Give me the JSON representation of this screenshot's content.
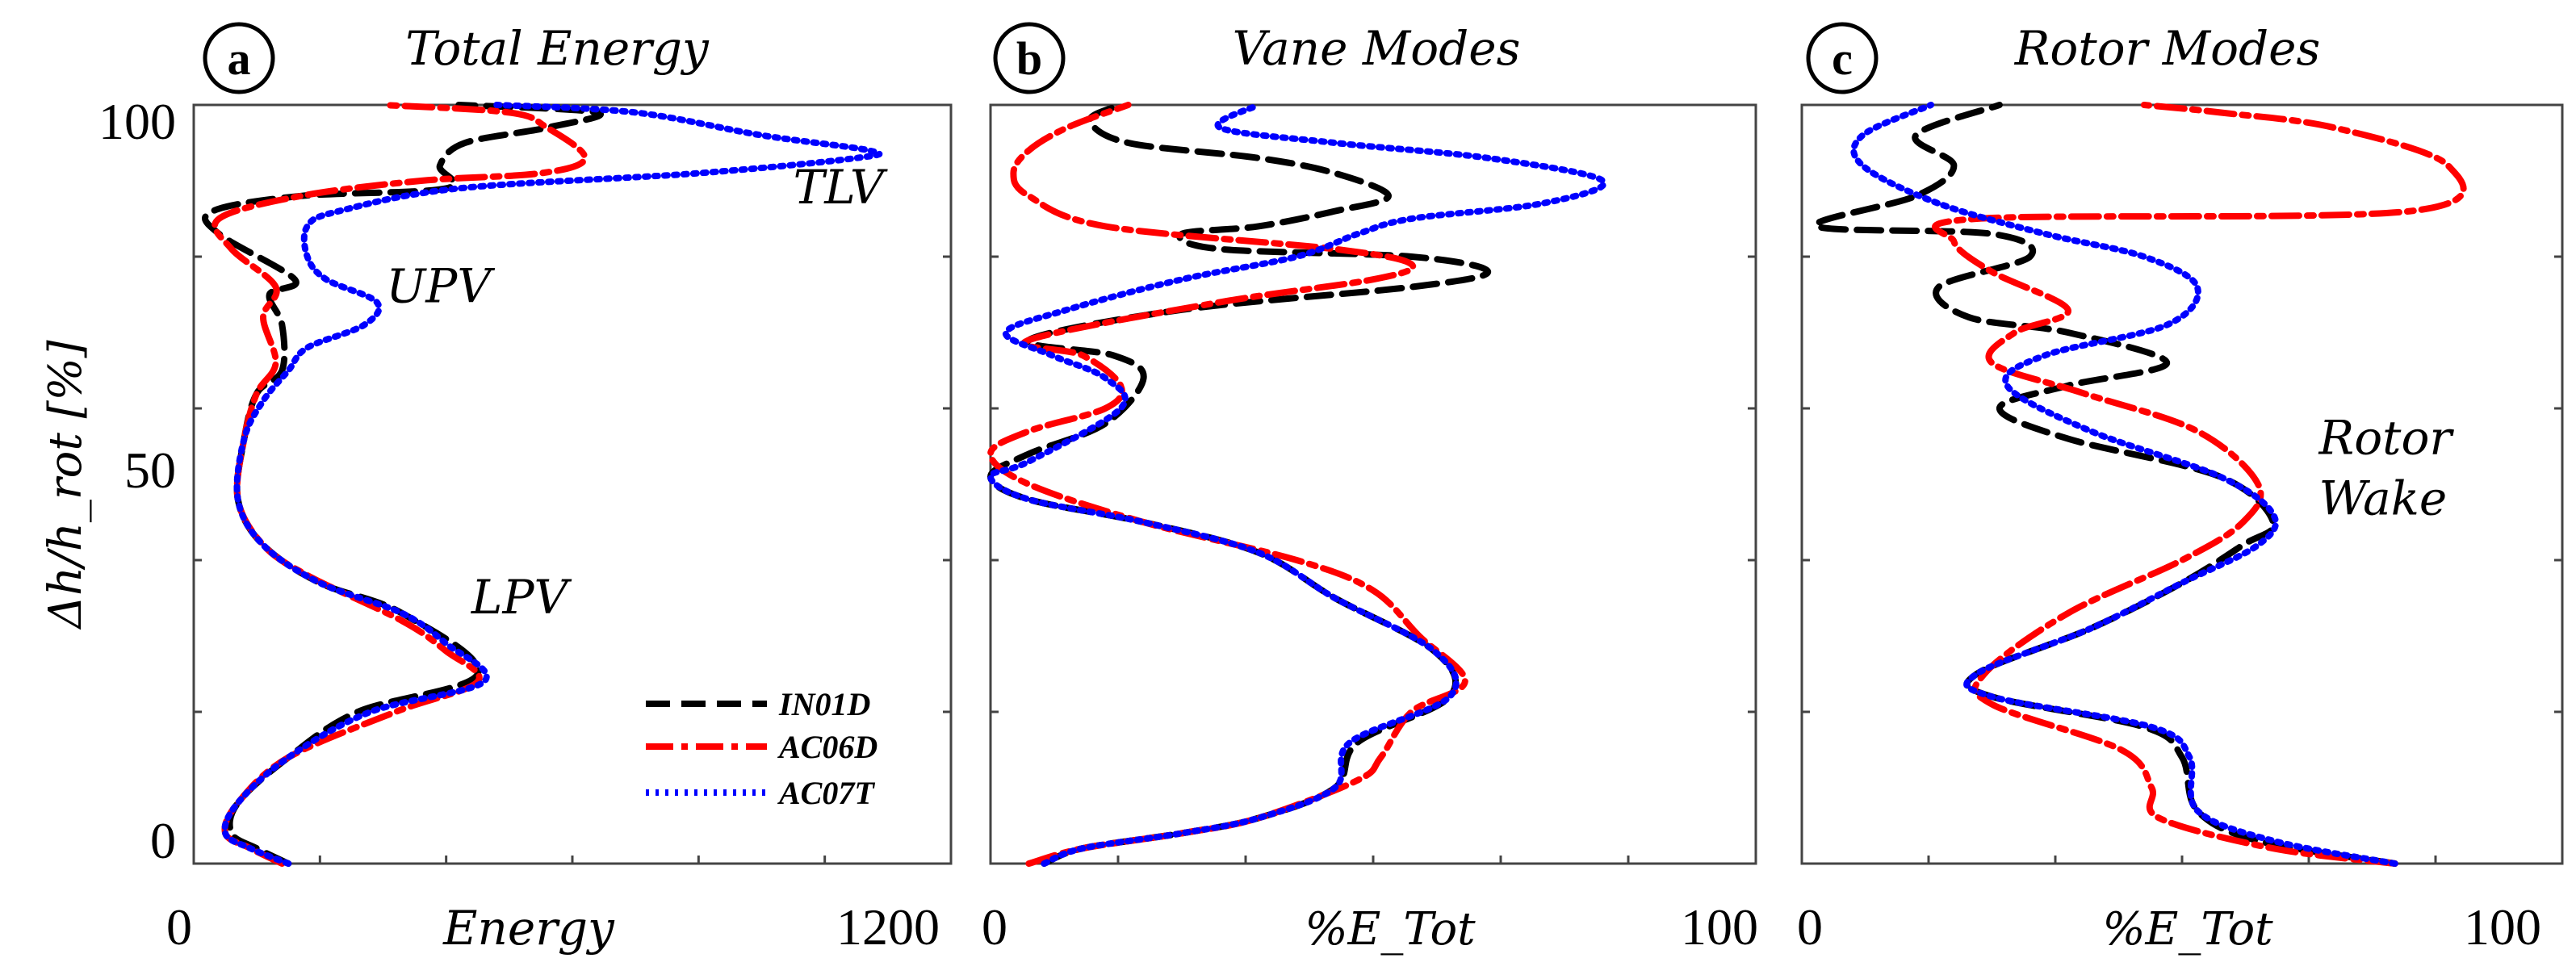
{
  "chart_data": [
    {
      "type": "line",
      "panel_label": "a",
      "title": "Total Energy",
      "xlabel": "Energy",
      "ylabel": "Δh/h_rot [%]",
      "xlim": [
        0,
        1200
      ],
      "ylim": [
        0,
        100
      ],
      "x_tick_labels": [
        "0",
        "1200"
      ],
      "y_tick_labels": [
        "0",
        "50",
        "100"
      ],
      "annotations": [
        {
          "text": "TLV",
          "x": 950,
          "y": 87
        },
        {
          "text": "UPV",
          "x": 305,
          "y": 74
        },
        {
          "text": "LPV",
          "x": 440,
          "y": 33
        }
      ],
      "legend": {
        "position": "lower-right",
        "entries": [
          {
            "label": "IN01D",
            "color": "#000000",
            "style": "dashed"
          },
          {
            "label": "AC06D",
            "color": "#ff0000",
            "style": "dashdot"
          },
          {
            "label": "AC07T",
            "color": "#0000ff",
            "style": "dotted"
          }
        ]
      },
      "series": [
        {
          "name": "IN01D",
          "color": "#000000",
          "style": "dashed",
          "points": [
            [
              150,
              0
            ],
            [
              100,
              2
            ],
            [
              60,
              4
            ],
            [
              70,
              8
            ],
            [
              150,
              14
            ],
            [
              260,
              20
            ],
            [
              450,
              25
            ],
            [
              330,
              33
            ],
            [
              200,
              37
            ],
            [
              110,
              42
            ],
            [
              70,
              48
            ],
            [
              80,
              56
            ],
            [
              100,
              62
            ],
            [
              140,
              65
            ],
            [
              140,
              71
            ],
            [
              120,
              75
            ],
            [
              160,
              77
            ],
            [
              40,
              83
            ],
            [
              30,
              86
            ],
            [
              170,
              88
            ],
            [
              400,
              89
            ],
            [
              390,
              92
            ],
            [
              430,
              95
            ],
            [
              560,
              97
            ],
            [
              640,
              99
            ],
            [
              420,
              100
            ]
          ]
        },
        {
          "name": "AC06D",
          "color": "#ff0000",
          "style": "dashdot",
          "points": [
            [
              140,
              0
            ],
            [
              90,
              2
            ],
            [
              50,
              4
            ],
            [
              70,
              8
            ],
            [
              150,
              14
            ],
            [
              320,
              20
            ],
            [
              450,
              24
            ],
            [
              400,
              28
            ],
            [
              330,
              32
            ],
            [
              180,
              38
            ],
            [
              110,
              42
            ],
            [
              70,
              48
            ],
            [
              80,
              56
            ],
            [
              100,
              62
            ],
            [
              130,
              66
            ],
            [
              110,
              72
            ],
            [
              130,
              76
            ],
            [
              60,
              81
            ],
            [
              40,
              85
            ],
            [
              170,
              88
            ],
            [
              360,
              90
            ],
            [
              550,
              91
            ],
            [
              620,
              93
            ],
            [
              560,
              97
            ],
            [
              500,
              99
            ],
            [
              300,
              100
            ]
          ]
        },
        {
          "name": "AC07T",
          "color": "#0000ff",
          "style": "dotted",
          "points": [
            [
              150,
              0
            ],
            [
              90,
              2
            ],
            [
              50,
              4
            ],
            [
              70,
              8
            ],
            [
              150,
              14
            ],
            [
              280,
              20
            ],
            [
              460,
              24
            ],
            [
              400,
              29
            ],
            [
              330,
              33
            ],
            [
              200,
              37
            ],
            [
              110,
              42
            ],
            [
              70,
              48
            ],
            [
              80,
              56
            ],
            [
              110,
              61
            ],
            [
              150,
              65
            ],
            [
              180,
              68
            ],
            [
              270,
              71
            ],
            [
              290,
              74
            ],
            [
              210,
              77
            ],
            [
              180,
              80
            ],
            [
              180,
              84
            ],
            [
              230,
              86
            ],
            [
              420,
              89
            ],
            [
              800,
              91
            ],
            [
              1050,
              93
            ],
            [
              1070,
              94
            ],
            [
              900,
              96
            ],
            [
              700,
              99
            ],
            [
              480,
              100
            ]
          ]
        }
      ]
    },
    {
      "type": "line",
      "panel_label": "b",
      "title": "Vane Modes",
      "xlabel": "%E_Tot",
      "ylabel": "",
      "xlim": [
        0,
        100
      ],
      "ylim": [
        0,
        100
      ],
      "x_tick_labels": [
        "0",
        "100"
      ],
      "y_tick_labels": [],
      "annotations": [],
      "series": [
        {
          "name": "IN01D",
          "color": "#000000",
          "style": "dashed",
          "points": [
            [
              7,
              0
            ],
            [
              12,
              2
            ],
            [
              25,
              4
            ],
            [
              35,
              6
            ],
            [
              45,
              10
            ],
            [
              48,
              16
            ],
            [
              60,
              22
            ],
            [
              58,
              28
            ],
            [
              45,
              35
            ],
            [
              35,
              41
            ],
            [
              20,
              45
            ],
            [
              5,
              48
            ],
            [
              0,
              51
            ],
            [
              5,
              54
            ],
            [
              15,
              58
            ],
            [
              20,
              64
            ],
            [
              16,
              67
            ],
            [
              5,
              69
            ],
            [
              25,
              73
            ],
            [
              55,
              76
            ],
            [
              65,
              78
            ],
            [
              55,
              80
            ],
            [
              30,
              81
            ],
            [
              25,
              83
            ],
            [
              35,
              84
            ],
            [
              45,
              86
            ],
            [
              52,
              88
            ],
            [
              45,
              91
            ],
            [
              35,
              93
            ],
            [
              18,
              95
            ],
            [
              13,
              98
            ],
            [
              17,
              100
            ]
          ]
        },
        {
          "name": "AC06D",
          "color": "#ff0000",
          "style": "dashdot",
          "points": [
            [
              5,
              0
            ],
            [
              12,
              2
            ],
            [
              25,
              4
            ],
            [
              35,
              6
            ],
            [
              48,
              11
            ],
            [
              51,
              14
            ],
            [
              55,
              20
            ],
            [
              62,
              24
            ],
            [
              56,
              30
            ],
            [
              50,
              36
            ],
            [
              40,
              40
            ],
            [
              20,
              45
            ],
            [
              5,
              50
            ],
            [
              0,
              54
            ],
            [
              5,
              57
            ],
            [
              15,
              60
            ],
            [
              17,
              63
            ],
            [
              12,
              67
            ],
            [
              5,
              69
            ],
            [
              30,
              74
            ],
            [
              50,
              77
            ],
            [
              55,
              79
            ],
            [
              45,
              81
            ],
            [
              15,
              84
            ],
            [
              5,
              88
            ],
            [
              3,
              91
            ],
            [
              5,
              94
            ],
            [
              10,
              97
            ],
            [
              18,
              100
            ]
          ]
        },
        {
          "name": "AC07T",
          "color": "#0000ff",
          "style": "dotted",
          "points": [
            [
              7,
              0
            ],
            [
              12,
              2
            ],
            [
              25,
              4
            ],
            [
              35,
              6
            ],
            [
              45,
              10
            ],
            [
              47,
              16
            ],
            [
              60,
              22
            ],
            [
              58,
              28
            ],
            [
              45,
              35
            ],
            [
              35,
              41
            ],
            [
              20,
              45
            ],
            [
              5,
              48
            ],
            [
              0,
              51
            ],
            [
              5,
              53
            ],
            [
              17,
              60
            ],
            [
              15,
              64
            ],
            [
              8,
              67
            ],
            [
              2,
              70
            ],
            [
              10,
              73
            ],
            [
              25,
              77
            ],
            [
              40,
              80
            ],
            [
              48,
              83
            ],
            [
              55,
              85
            ],
            [
              72,
              87
            ],
            [
              80,
              90
            ],
            [
              65,
              93
            ],
            [
              45,
              95
            ],
            [
              30,
              97
            ],
            [
              35,
              100
            ]
          ]
        }
      ]
    },
    {
      "type": "line",
      "panel_label": "c",
      "title": "Rotor Modes",
      "xlabel": "%E_Tot",
      "ylabel": "",
      "xlim": [
        0,
        100
      ],
      "ylim": [
        0,
        100
      ],
      "x_tick_labels": [
        "0",
        "100"
      ],
      "y_tick_labels": [],
      "annotations": [
        {
          "text": "Rotor",
          "x": 68,
          "y": 54
        },
        {
          "text": "Wake",
          "x": 68,
          "y": 46
        }
      ],
      "series": [
        {
          "name": "IN01D",
          "color": "#000000",
          "style": "dashed",
          "points": [
            [
              78,
              0
            ],
            [
              60,
              3
            ],
            [
              52,
              7
            ],
            [
              50,
              14
            ],
            [
              45,
              18
            ],
            [
              25,
              22
            ],
            [
              23,
              25
            ],
            [
              38,
              31
            ],
            [
              50,
              37
            ],
            [
              58,
              42
            ],
            [
              62,
              45
            ],
            [
              55,
              51
            ],
            [
              35,
              56
            ],
            [
              26,
              60
            ],
            [
              35,
              63
            ],
            [
              48,
              66
            ],
            [
              35,
              70
            ],
            [
              22,
              72
            ],
            [
              18,
              76
            ],
            [
              30,
              80
            ],
            [
              25,
              83
            ],
            [
              2,
              84
            ],
            [
              15,
              88
            ],
            [
              20,
              92
            ],
            [
              15,
              96
            ],
            [
              26,
              100
            ]
          ]
        },
        {
          "name": "AC06D",
          "color": "#ff0000",
          "style": "dashdot",
          "points": [
            [
              78,
              0
            ],
            [
              62,
              2
            ],
            [
              47,
              6
            ],
            [
              46,
              10
            ],
            [
              42,
              15
            ],
            [
              25,
              21
            ],
            [
              24,
              25
            ],
            [
              35,
              33
            ],
            [
              50,
              40
            ],
            [
              58,
              45
            ],
            [
              60,
              50
            ],
            [
              52,
              57
            ],
            [
              37,
              62
            ],
            [
              25,
              66
            ],
            [
              28,
              70
            ],
            [
              35,
              73
            ],
            [
              25,
              78
            ],
            [
              20,
              82
            ],
            [
              23,
              85
            ],
            [
              80,
              86
            ],
            [
              85,
              92
            ],
            [
              70,
              97
            ],
            [
              55,
              99
            ],
            [
              45,
              100
            ]
          ]
        },
        {
          "name": "AC07T",
          "color": "#0000ff",
          "style": "dotted",
          "points": [
            [
              78,
              0
            ],
            [
              62,
              3
            ],
            [
              52,
              7
            ],
            [
              51,
              14
            ],
            [
              46,
              18
            ],
            [
              25,
              22
            ],
            [
              23,
              25
            ],
            [
              38,
              31
            ],
            [
              50,
              37
            ],
            [
              60,
              42
            ],
            [
              62,
              46
            ],
            [
              55,
              51
            ],
            [
              38,
              57
            ],
            [
              27,
              63
            ],
            [
              32,
              67
            ],
            [
              48,
              71
            ],
            [
              52,
              76
            ],
            [
              45,
              80
            ],
            [
              32,
              83
            ],
            [
              18,
              87
            ],
            [
              8,
              92
            ],
            [
              8,
              96
            ],
            [
              17,
              100
            ]
          ]
        }
      ]
    }
  ]
}
